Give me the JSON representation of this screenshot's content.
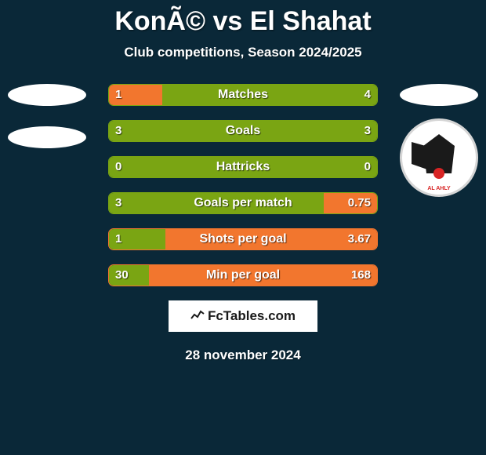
{
  "title": "KonÃ© vs El Shahat",
  "subtitle": "Club competitions, Season 2024/2025",
  "date": "28 november 2024",
  "watermark": "FcTables.com",
  "club2_name": "AL AHLY",
  "colors": {
    "background": "#0a2838",
    "accent_orange": "#f2762e",
    "accent_green": "#7aa513",
    "text": "#ffffff",
    "watermark_bg": "#ffffff",
    "watermark_text": "#1a1a1a",
    "club_red": "#d82424"
  },
  "bars": [
    {
      "label": "Matches",
      "left": "1",
      "right": "4",
      "left_pct": 20,
      "right_pct": 80,
      "left_color": "#f2762e",
      "right_color": "#7aa513",
      "border": "#7aa513"
    },
    {
      "label": "Goals",
      "left": "3",
      "right": "3",
      "left_pct": 50,
      "right_pct": 50,
      "left_color": "#7aa513",
      "right_color": "#7aa513",
      "border": "#7aa513"
    },
    {
      "label": "Hattricks",
      "left": "0",
      "right": "0",
      "left_pct": 50,
      "right_pct": 50,
      "left_color": "#7aa513",
      "right_color": "#7aa513",
      "border": "#7aa513"
    },
    {
      "label": "Goals per match",
      "left": "3",
      "right": "0.75",
      "left_pct": 80,
      "right_pct": 20,
      "left_color": "#7aa513",
      "right_color": "#f2762e",
      "border": "#7aa513"
    },
    {
      "label": "Shots per goal",
      "left": "1",
      "right": "3.67",
      "left_pct": 21,
      "right_pct": 79,
      "left_color": "#7aa513",
      "right_color": "#f2762e",
      "border": "#f2762e"
    },
    {
      "label": "Min per goal",
      "left": "30",
      "right": "168",
      "left_pct": 15,
      "right_pct": 85,
      "left_color": "#7aa513",
      "right_color": "#f2762e",
      "border": "#f2762e"
    }
  ]
}
